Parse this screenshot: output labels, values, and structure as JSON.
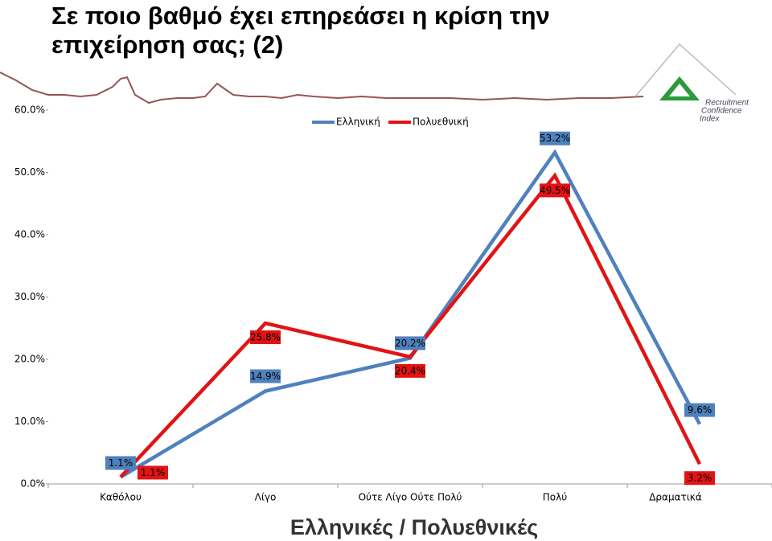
{
  "chart_data": {
    "type": "line",
    "title": [
      "Σε ποιο βαθμό έχει επηρεάσει η κρίση την",
      "επιχείρηση σας; (2)"
    ],
    "subtitle": "Ελληνικές / Πολυεθνικές",
    "logo": [
      "Recruitment",
      "Confidence",
      "Index"
    ],
    "categories": [
      "Καθόλου",
      "Λίγο",
      "Ούτε Λίγο Ούτε Πολύ",
      "Πολύ",
      "Δραματικά"
    ],
    "series": [
      {
        "name": "Ελληνική",
        "color": "#4f81bd",
        "values": [
          1.1,
          14.9,
          20.2,
          53.2,
          9.6
        ],
        "value_labels": [
          "1.1%",
          "14.9%",
          "20.2%",
          "53.2%",
          "9.6%"
        ]
      },
      {
        "name": "Πολυεθνική",
        "color": "#e31313",
        "values": [
          1.1,
          25.8,
          20.4,
          49.5,
          3.2
        ],
        "value_labels": [
          "1.1%",
          "25.8%",
          "20.4%",
          "49.5%",
          "3.2%"
        ]
      }
    ],
    "ylim": [
      0,
      60
    ],
    "yticks": [
      {
        "value": 0,
        "label": "0.0%"
      },
      {
        "value": 10,
        "label": "10.0%"
      },
      {
        "value": 20,
        "label": "20.0%"
      },
      {
        "value": 30,
        "label": "30.0%"
      },
      {
        "value": 40,
        "label": "40.0%"
      },
      {
        "value": 50,
        "label": "50.0%"
      },
      {
        "value": 60,
        "label": "60.0%"
      }
    ],
    "legend": "top"
  }
}
